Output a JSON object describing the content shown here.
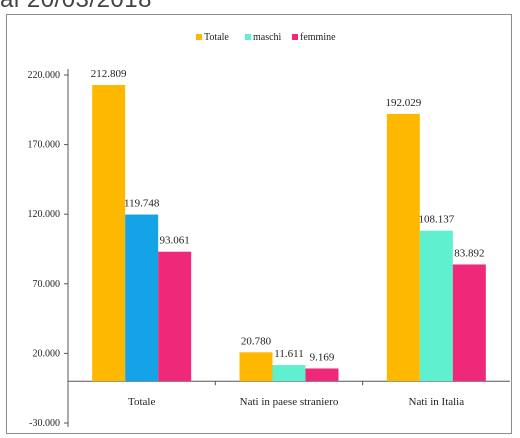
{
  "header": {
    "cut_title": "al 20/03/2018"
  },
  "chart_data": {
    "type": "bar",
    "categories": [
      "Totale",
      "Nati in paese straniero",
      "Nati in Italia"
    ],
    "series": [
      {
        "name": "Totale",
        "color": "#ffb800",
        "values": [
          212809,
          20780,
          192029
        ],
        "labels": [
          "212.809",
          "20.780",
          "192.029"
        ]
      },
      {
        "name": "maschi",
        "color_by_category": [
          "#14a3e6",
          "#5ff0d0",
          "#5ff0d0"
        ],
        "values": [
          119748,
          11611,
          108137
        ],
        "labels": [
          "119.748",
          "11.611",
          "108.137"
        ]
      },
      {
        "name": "femmine",
        "color": "#f0287a",
        "values": [
          93061,
          9169,
          83892
        ],
        "labels": [
          "93.061",
          "9.169",
          "83.892"
        ]
      }
    ],
    "ylim": [
      -30000,
      220000
    ],
    "yticks": [
      220000,
      170000,
      120000,
      70000,
      20000,
      -30000
    ],
    "ytick_labels": [
      "220.000",
      "170.000",
      "120.000",
      "70.000",
      "20.000",
      "-30.000"
    ],
    "legend_position": "top-center",
    "grid": false
  }
}
